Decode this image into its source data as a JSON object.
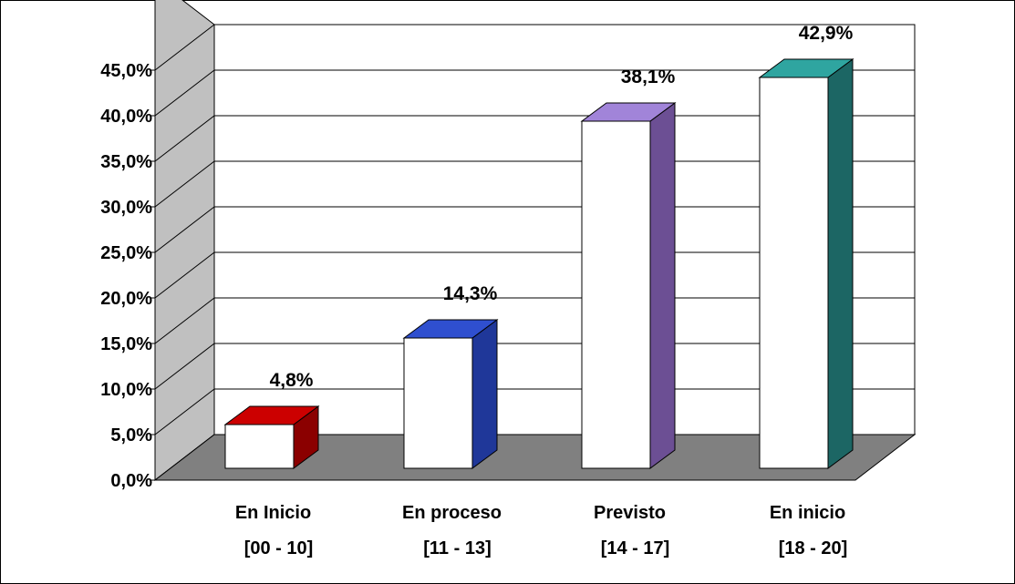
{
  "chart_data": {
    "type": "bar",
    "categories": [
      [
        "En Inicio",
        "[00 - 10]"
      ],
      [
        "En proceso",
        "[11 - 13]"
      ],
      [
        "Previsto",
        "[14 - 17]"
      ],
      [
        "En inicio",
        "[18 - 20]"
      ]
    ],
    "values": [
      4.8,
      14.3,
      38.1,
      42.9
    ],
    "value_labels": [
      "4,8%",
      "14,3%",
      "38,1%",
      "42,9%"
    ],
    "yticks": [
      "0,0%",
      "5,0%",
      "10,0%",
      "15,0%",
      "20,0%",
      "25,0%",
      "30,0%",
      "35,0%",
      "40,0%",
      "45,0%"
    ],
    "ylim": [
      0,
      45
    ],
    "grid": true,
    "legend": "none",
    "bar_face_color": "#ffffff",
    "bar_colors": [
      {
        "top": "#cc0000",
        "side": "#8b0000"
      },
      {
        "top": "#2f4fcf",
        "side": "#1f3799"
      },
      {
        "top": "#a184d9",
        "side": "#6c4f94"
      },
      {
        "top": "#2fa5a0",
        "side": "#1c6664"
      }
    ],
    "wall_color": "#c0c0c0",
    "floor_color": "#808080"
  }
}
